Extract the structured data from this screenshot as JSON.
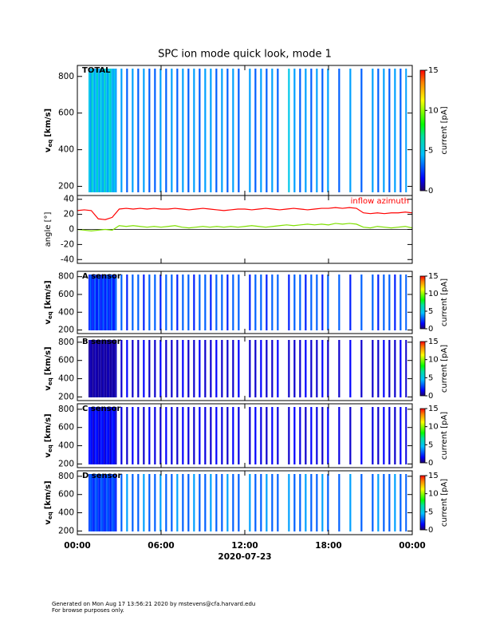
{
  "chart_data": [
    {
      "type": "spectrogram",
      "title": "SPC ion mode quick look, mode 1",
      "panel_label": "TOTAL",
      "ylabel": {
        "main": "v",
        "sub": "eq",
        "unit": "[km/s]"
      },
      "ylim": [
        150,
        860
      ],
      "yticks": [
        200,
        400,
        600,
        800
      ],
      "clabel": "current [pA]",
      "clim": [
        0,
        15
      ],
      "cticks": [
        0,
        5,
        10,
        15
      ],
      "x": [
        0.8,
        0.9,
        1.0,
        1.1,
        1.2,
        1.3,
        1.4,
        1.5,
        1.6,
        1.7,
        1.8,
        1.9,
        2.0,
        2.1,
        2.2,
        2.3,
        2.4,
        2.5,
        2.6,
        2.7,
        3.1,
        3.5,
        3.9,
        4.3,
        4.7,
        5.1,
        5.5,
        5.9,
        6.3,
        6.7,
        7.1,
        7.5,
        7.9,
        8.3,
        8.7,
        9.1,
        9.5,
        9.9,
        10.3,
        10.7,
        11.1,
        11.5,
        12.3,
        12.7,
        13.1,
        13.5,
        13.9,
        14.3,
        15.1,
        15.5,
        15.9,
        16.3,
        16.7,
        17.1,
        17.5,
        17.9,
        18.7,
        19.5,
        20.3,
        21.1,
        21.5,
        21.9,
        22.3,
        22.7,
        23.1,
        23.5
      ],
      "values": [
        5,
        4,
        6,
        5,
        4,
        5,
        6,
        4,
        5,
        5,
        4,
        6,
        5,
        4,
        5,
        6,
        5,
        4,
        5,
        4,
        4,
        3,
        4,
        3,
        4,
        3,
        3,
        4,
        3,
        4,
        3,
        4,
        3,
        4,
        3,
        4,
        4,
        3,
        4,
        3,
        4,
        3,
        4,
        3,
        4,
        3,
        4,
        3,
        5,
        4,
        3,
        4,
        3,
        4,
        3,
        4,
        3,
        4,
        3,
        4,
        3,
        4,
        3,
        4,
        3,
        4
      ]
    },
    {
      "type": "line",
      "ylabel": "angle [°]",
      "ylim": [
        -45,
        45
      ],
      "yticks": [
        -40,
        -20,
        0,
        20,
        40
      ],
      "x": [
        0,
        0.5,
        1,
        1.5,
        2,
        2.5,
        3,
        3.5,
        4,
        4.5,
        5,
        5.5,
        6,
        6.5,
        7,
        7.5,
        8,
        8.5,
        9,
        9.5,
        10,
        10.5,
        11,
        11.5,
        12,
        12.5,
        13,
        13.5,
        14,
        14.5,
        15,
        15.5,
        16,
        16.5,
        17,
        17.5,
        18,
        18.5,
        19,
        19.5,
        20,
        20.5,
        21,
        21.5,
        22,
        22.5,
        23,
        23.5,
        24
      ],
      "series": [
        {
          "name": "inflow azimuth",
          "color": "#ff0000",
          "values": [
            25,
            26,
            25,
            14,
            13,
            16,
            27,
            28,
            27,
            28,
            27,
            28,
            27,
            27,
            28,
            27,
            26,
            27,
            28,
            27,
            26,
            25,
            26,
            27,
            27,
            26,
            27,
            28,
            27,
            26,
            27,
            28,
            27,
            26,
            27,
            28,
            28,
            29,
            28,
            29,
            28,
            22,
            21,
            22,
            21,
            22,
            22,
            23,
            22
          ]
        },
        {
          "color": "#7fe000",
          "values": [
            0,
            -1,
            -2,
            -1,
            0,
            -1,
            5,
            4,
            5,
            4,
            3,
            4,
            3,
            4,
            5,
            3,
            2,
            3,
            4,
            3,
            4,
            3,
            4,
            3,
            4,
            5,
            4,
            3,
            4,
            5,
            6,
            5,
            6,
            7,
            6,
            7,
            6,
            8,
            7,
            8,
            7,
            3,
            2,
            4,
            3,
            2,
            3,
            4,
            2
          ]
        }
      ]
    },
    {
      "type": "spectrogram",
      "panel_label": "A sensor",
      "ylabel": {
        "main": "v",
        "sub": "eq",
        "unit": "[km/s]"
      },
      "ylim": [
        160,
        860
      ],
      "yticks": [
        200,
        400,
        600,
        800
      ],
      "clabel": "current [pA]",
      "clim": [
        0,
        15
      ],
      "cticks": [
        0,
        5,
        10,
        15
      ],
      "x": [
        0.8,
        0.9,
        1.0,
        1.1,
        1.2,
        1.3,
        1.4,
        1.5,
        1.6,
        1.7,
        1.8,
        1.9,
        2.0,
        2.1,
        2.2,
        2.3,
        2.4,
        2.5,
        2.6,
        2.7,
        3.1,
        3.5,
        3.9,
        4.3,
        4.7,
        5.1,
        5.5,
        5.9,
        6.3,
        6.7,
        7.1,
        7.5,
        7.9,
        8.3,
        8.7,
        9.1,
        9.5,
        9.9,
        10.3,
        10.7,
        11.1,
        11.5,
        12.3,
        12.7,
        13.1,
        13.5,
        13.9,
        14.3,
        15.1,
        15.5,
        15.9,
        16.3,
        16.7,
        17.1,
        17.5,
        17.9,
        18.7,
        19.5,
        20.3,
        21.1,
        21.5,
        21.9,
        22.3,
        22.7,
        23.1,
        23.5
      ],
      "values": [
        2,
        3,
        2,
        2,
        3,
        2,
        2,
        3,
        2,
        2,
        3,
        2,
        2,
        3,
        2,
        2,
        3,
        2,
        2,
        3,
        3,
        2,
        3,
        3,
        2,
        3,
        3,
        2,
        3,
        3,
        2,
        3,
        3,
        2,
        3,
        3,
        2,
        3,
        3,
        2,
        3,
        3,
        2,
        3,
        3,
        2,
        3,
        3,
        2,
        3,
        3,
        2,
        3,
        3,
        2,
        3,
        3,
        2,
        3,
        3,
        2,
        3,
        3,
        2,
        3,
        3
      ]
    },
    {
      "type": "spectrogram",
      "panel_label": "B sensor",
      "ylabel": {
        "main": "v",
        "sub": "eq",
        "unit": "[km/s]"
      },
      "ylim": [
        160,
        860
      ],
      "yticks": [
        200,
        400,
        600,
        800
      ],
      "clabel": "current [pA]",
      "clim": [
        0,
        15
      ],
      "cticks": [
        0,
        5,
        10,
        15
      ],
      "x": [
        0.8,
        0.9,
        1.0,
        1.1,
        1.2,
        1.3,
        1.4,
        1.5,
        1.6,
        1.7,
        1.8,
        1.9,
        2.0,
        2.1,
        2.2,
        2.3,
        2.4,
        2.5,
        2.6,
        2.7,
        3.1,
        3.5,
        3.9,
        4.3,
        4.7,
        5.1,
        5.5,
        5.9,
        6.3,
        6.7,
        7.1,
        7.5,
        7.9,
        8.3,
        8.7,
        9.1,
        9.5,
        9.9,
        10.3,
        10.7,
        11.1,
        11.5,
        12.3,
        12.7,
        13.1,
        13.5,
        13.9,
        14.3,
        15.1,
        15.5,
        15.9,
        16.3,
        16.7,
        17.1,
        17.5,
        17.9,
        18.7,
        19.5,
        20.3,
        21.1,
        21.5,
        21.9,
        22.3,
        22.7,
        23.1,
        23.5
      ],
      "values": [
        0.5,
        0.8,
        0.6,
        0.5,
        0.7,
        0.8,
        0.5,
        0.6,
        0.7,
        0.5,
        0.8,
        0.6,
        0.5,
        0.7,
        0.8,
        0.5,
        0.6,
        0.7,
        0.5,
        0.8,
        1,
        1.5,
        1,
        1,
        1.5,
        1,
        1,
        1.5,
        1,
        1,
        1,
        1.5,
        1,
        1,
        1.5,
        1,
        1,
        1.5,
        1,
        1,
        1,
        1.5,
        1,
        1,
        1.5,
        1,
        1,
        1.5,
        1,
        1,
        1,
        1.5,
        1,
        1,
        1.5,
        1,
        1,
        1.5,
        1,
        1,
        1,
        1.5,
        1,
        1,
        1.5,
        1
      ]
    },
    {
      "type": "spectrogram",
      "panel_label": "C sensor",
      "ylabel": {
        "main": "v",
        "sub": "eq",
        "unit": "[km/s]"
      },
      "ylim": [
        160,
        860
      ],
      "yticks": [
        200,
        400,
        600,
        800
      ],
      "clabel": "current [pA]",
      "clim": [
        0,
        15
      ],
      "cticks": [
        0,
        5,
        10,
        15
      ],
      "x": [
        0.8,
        0.9,
        1.0,
        1.1,
        1.2,
        1.3,
        1.4,
        1.5,
        1.6,
        1.7,
        1.8,
        1.9,
        2.0,
        2.1,
        2.2,
        2.3,
        2.4,
        2.5,
        2.6,
        2.7,
        3.1,
        3.5,
        3.9,
        4.3,
        4.7,
        5.1,
        5.5,
        5.9,
        6.3,
        6.7,
        7.1,
        7.5,
        7.9,
        8.3,
        8.7,
        9.1,
        9.5,
        9.9,
        10.3,
        10.7,
        11.1,
        11.5,
        12.3,
        12.7,
        13.1,
        13.5,
        13.9,
        14.3,
        15.1,
        15.5,
        15.9,
        16.3,
        16.7,
        17.1,
        17.5,
        17.9,
        18.7,
        19.5,
        20.3,
        21.1,
        21.5,
        21.9,
        22.3,
        22.7,
        23.1,
        23.5
      ],
      "values": [
        1.5,
        2,
        1.5,
        1,
        1.5,
        2,
        1.5,
        1,
        1.5,
        2,
        1.5,
        1,
        1.5,
        2,
        1.5,
        1,
        1.5,
        2,
        1.5,
        1,
        1.2,
        1,
        1.5,
        1.2,
        1,
        1.5,
        1.2,
        1,
        1.5,
        1.2,
        1,
        1.5,
        1.2,
        1,
        1.5,
        1.2,
        1,
        1.5,
        1.2,
        1,
        1.5,
        1.2,
        1,
        1.5,
        1.2,
        1,
        1.5,
        1.2,
        1,
        1.5,
        1.2,
        1,
        1.5,
        1.2,
        1,
        1.5,
        1.2,
        1,
        1.5,
        1.2,
        1,
        1.5,
        1.2,
        1,
        1.5,
        1.2
      ]
    },
    {
      "type": "spectrogram",
      "panel_label": "D sensor",
      "ylabel": {
        "main": "v",
        "sub": "eq",
        "unit": "[km/s]"
      },
      "ylim": [
        160,
        860
      ],
      "yticks": [
        200,
        400,
        600,
        800
      ],
      "clabel": "current [pA]",
      "clim": [
        0,
        15
      ],
      "cticks": [
        0,
        5,
        10,
        15
      ],
      "x": [
        0.8,
        0.9,
        1.0,
        1.1,
        1.2,
        1.3,
        1.4,
        1.5,
        1.6,
        1.7,
        1.8,
        1.9,
        2.0,
        2.1,
        2.2,
        2.3,
        2.4,
        2.5,
        2.6,
        2.7,
        3.1,
        3.5,
        3.9,
        4.3,
        4.7,
        5.1,
        5.5,
        5.9,
        6.3,
        6.7,
        7.1,
        7.5,
        7.9,
        8.3,
        8.7,
        9.1,
        9.5,
        9.9,
        10.3,
        10.7,
        11.1,
        11.5,
        12.3,
        12.7,
        13.1,
        13.5,
        13.9,
        14.3,
        15.1,
        15.5,
        15.9,
        16.3,
        16.7,
        17.1,
        17.5,
        17.9,
        18.7,
        19.5,
        20.3,
        21.1,
        21.5,
        21.9,
        22.3,
        22.7,
        23.1,
        23.5
      ],
      "values": [
        2.5,
        3,
        2.5,
        2,
        2.5,
        3,
        2.5,
        2,
        2.5,
        3,
        2.5,
        2,
        2.5,
        3,
        2.5,
        2,
        2.5,
        3,
        2.5,
        2,
        3,
        4,
        3,
        3,
        4,
        3,
        3,
        4,
        3,
        3,
        4,
        3,
        3,
        4,
        3,
        3,
        4,
        3,
        3,
        4,
        3,
        3,
        4,
        3,
        3,
        4,
        3,
        3,
        4,
        3,
        3,
        4,
        3,
        3,
        4,
        3,
        3,
        4,
        3,
        3,
        4,
        3,
        3,
        4,
        3,
        3
      ],
      "xlabel": "2020-07-23",
      "xlim": [
        0,
        24
      ],
      "xticks": [
        {
          "value": 0,
          "label": "00:00"
        },
        {
          "value": 6,
          "label": "06:00"
        },
        {
          "value": 12,
          "label": "12:00"
        },
        {
          "value": 18,
          "label": "18:00"
        },
        {
          "value": 24,
          "label": "00:00"
        }
      ]
    }
  ],
  "footer": [
    "Generated on Mon Aug 17 13:56:21 2020 by mstevens@cfa.harvard.edu",
    "For browse purposes only."
  ]
}
